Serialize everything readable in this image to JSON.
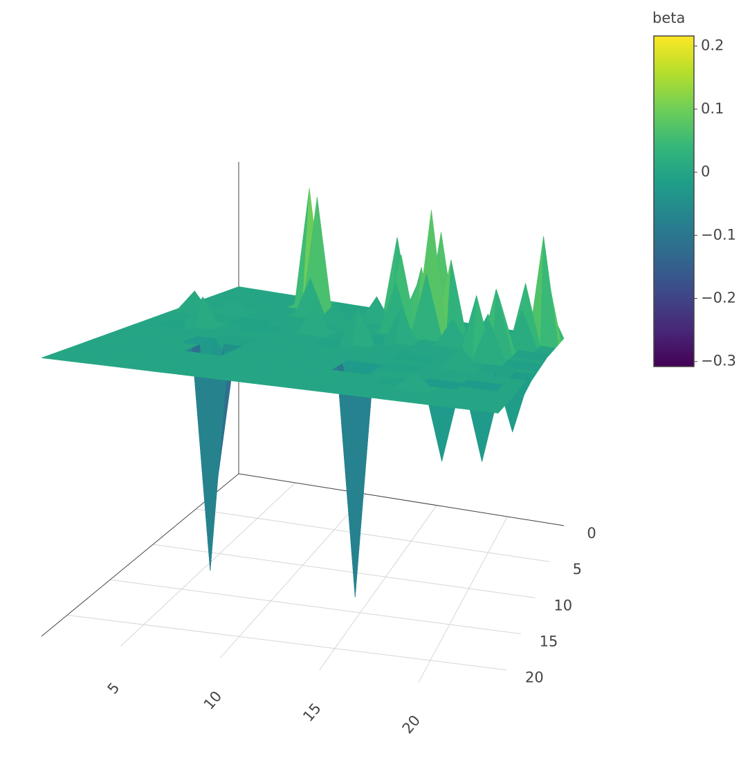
{
  "chart_data": {
    "type": "surface",
    "colorbar_title": "beta",
    "x": [
      1,
      2,
      3,
      4,
      5,
      6,
      7,
      8,
      9,
      10,
      11,
      12,
      13,
      14,
      15,
      16,
      17,
      18,
      19,
      20,
      21,
      22,
      23,
      24
    ],
    "y": [
      0,
      1,
      2,
      3,
      4,
      5,
      6,
      7,
      8,
      9,
      10,
      11,
      12,
      13,
      14,
      15,
      16,
      17,
      18,
      19,
      20,
      21,
      22,
      23
    ],
    "z": [
      [
        0,
        0,
        0,
        0,
        0,
        0,
        0,
        0,
        0,
        0,
        0,
        0,
        0,
        0,
        0,
        0,
        0,
        0,
        0,
        0,
        0,
        0,
        0.05,
        0
      ],
      [
        0,
        0,
        0,
        0,
        0,
        0,
        0.08,
        0,
        0,
        0,
        0,
        0,
        0,
        0.06,
        0,
        0,
        0,
        0,
        0,
        0,
        0,
        0,
        0.12,
        0
      ],
      [
        0,
        0,
        0,
        0,
        0,
        0,
        0.2,
        0,
        0,
        0,
        0,
        0,
        0.14,
        0,
        0,
        0.16,
        0,
        0,
        0,
        0,
        0,
        0,
        0.18,
        0
      ],
      [
        0,
        0,
        0,
        0,
        0,
        0,
        0,
        0.19,
        0,
        0,
        0,
        0.04,
        0,
        0,
        0.1,
        0,
        0.12,
        0,
        0,
        0,
        0,
        0.1,
        0,
        0
      ],
      [
        0,
        0,
        0,
        0,
        0,
        0,
        0,
        0.06,
        0,
        0,
        0,
        0,
        0,
        0.12,
        0,
        0.2,
        0,
        0,
        0.04,
        0,
        0,
        0.06,
        0,
        0
      ],
      [
        0,
        0,
        0,
        0,
        0,
        0,
        0,
        0,
        0,
        0.03,
        0,
        0,
        0,
        0.08,
        0,
        0.1,
        0,
        0,
        0,
        0.05,
        0,
        0,
        0,
        0
      ],
      [
        0,
        0,
        0,
        0.02,
        0,
        0,
        0,
        0,
        0,
        0,
        0,
        0.03,
        0,
        0,
        0,
        0,
        0,
        0.04,
        0,
        0,
        0.08,
        0,
        -0.04,
        0
      ],
      [
        0,
        0.03,
        0,
        0,
        0,
        0,
        0,
        0,
        0,
        0,
        0,
        0,
        0,
        0,
        0.05,
        0,
        0,
        0,
        0,
        0,
        0.1,
        0,
        0,
        0
      ],
      [
        0,
        0,
        0,
        0,
        0,
        -0.02,
        0,
        0,
        0,
        0.04,
        0,
        0,
        0,
        -0.02,
        0,
        0,
        0,
        0,
        0,
        0.09,
        0,
        0,
        0,
        0
      ],
      [
        0,
        0,
        0,
        0,
        0,
        0,
        -0.02,
        0,
        0,
        0,
        0,
        0,
        0.05,
        0,
        0,
        0,
        0,
        0,
        0,
        0,
        0.06,
        0,
        -0.05,
        0
      ],
      [
        0,
        0,
        0,
        0.04,
        0,
        0,
        0,
        0,
        0,
        0,
        0,
        -0.02,
        0,
        0,
        0,
        0,
        0,
        0,
        0,
        0,
        0,
        0,
        0,
        0
      ],
      [
        0,
        0,
        -0.02,
        0,
        0,
        0,
        0,
        0,
        0,
        0,
        0,
        0,
        0,
        0,
        0,
        0,
        -0.02,
        0,
        0,
        0,
        0,
        -0.03,
        0,
        0
      ],
      [
        0,
        0,
        0,
        0,
        0,
        0,
        0,
        0,
        0,
        0,
        0,
        0,
        0,
        0,
        0,
        0,
        0,
        0,
        0,
        0.03,
        0,
        0,
        -0.08,
        0
      ],
      [
        0,
        0,
        0,
        0,
        0,
        0,
        -0.03,
        0,
        0,
        0,
        0,
        0,
        0,
        0,
        0,
        0,
        0,
        0,
        0,
        0,
        0,
        0,
        0,
        0
      ],
      [
        0,
        0,
        0,
        0,
        0,
        -0.1,
        0,
        0,
        0,
        0,
        0,
        0,
        0,
        0,
        0,
        0,
        -0.02,
        0,
        0,
        0,
        0,
        0,
        0,
        0
      ],
      [
        0,
        0,
        0,
        0,
        0,
        0,
        -0.18,
        0,
        0,
        0,
        0,
        0,
        0,
        0,
        -0.1,
        0,
        0,
        0,
        0,
        0,
        0,
        0,
        0,
        0
      ],
      [
        0,
        0,
        0,
        0,
        0,
        0,
        -0.29,
        0,
        0,
        0,
        0,
        0,
        0,
        0,
        -0.3,
        0,
        0,
        0,
        0,
        0,
        0,
        -0.1,
        0,
        0
      ],
      [
        0,
        0,
        0,
        0,
        0,
        0,
        0,
        0,
        0,
        0,
        0,
        0,
        0,
        0,
        0,
        0,
        0,
        0,
        0,
        -0.1,
        0,
        0,
        0,
        0
      ],
      [
        0,
        0,
        0,
        0,
        0,
        0,
        0,
        0,
        0,
        0,
        0,
        0,
        0,
        0,
        0,
        0,
        0,
        -0.02,
        0,
        0,
        0,
        0,
        0,
        0
      ],
      [
        0,
        0,
        0,
        0,
        0,
        0,
        0,
        0,
        0,
        0,
        0,
        0,
        0,
        0,
        0,
        0,
        0,
        0,
        0.02,
        0,
        0,
        0,
        0,
        0
      ],
      [
        0,
        0,
        0,
        0,
        0,
        0,
        0,
        0,
        0,
        0,
        0,
        0,
        0,
        0,
        0,
        0,
        0,
        0,
        0,
        0,
        0,
        0,
        0,
        0
      ],
      [
        0,
        0,
        0,
        0,
        0,
        0,
        0,
        0,
        0,
        0,
        0,
        0,
        0,
        0,
        0,
        0,
        0,
        0,
        0,
        0,
        0,
        0,
        0,
        0
      ],
      [
        0,
        0,
        0,
        0,
        0,
        0,
        0,
        0,
        0,
        0,
        0,
        0,
        0,
        0,
        0,
        0,
        0,
        0,
        0,
        0,
        0,
        0,
        0,
        0
      ],
      [
        0,
        0,
        0,
        0,
        0,
        0,
        0,
        0,
        0,
        0,
        0,
        0,
        0,
        0,
        0,
        0,
        0,
        0,
        0,
        0,
        0,
        0,
        0,
        0
      ]
    ],
    "xlim": [
      1,
      24
    ],
    "ylim": [
      0,
      23
    ],
    "zlim": [
      -0.33,
      0.22
    ],
    "xticks": [
      5,
      10,
      15,
      20
    ],
    "yticks": [
      0,
      5,
      10,
      15,
      20
    ],
    "clim": [
      -0.308,
      0.216
    ],
    "cticks": [
      0.2,
      0.1,
      0,
      {
        "value": -0.1,
        "label": "−0.1"
      },
      {
        "value": -0.2,
        "label": "−0.2"
      },
      {
        "value": -0.3,
        "label": "−0.3"
      }
    ],
    "colorscale": [
      "#440154",
      "#482878",
      "#3e4989",
      "#31688e",
      "#26828e",
      "#1f9e89",
      "#35b779",
      "#6ece58",
      "#b5de2b",
      "#fde725"
    ],
    "grid": true
  }
}
